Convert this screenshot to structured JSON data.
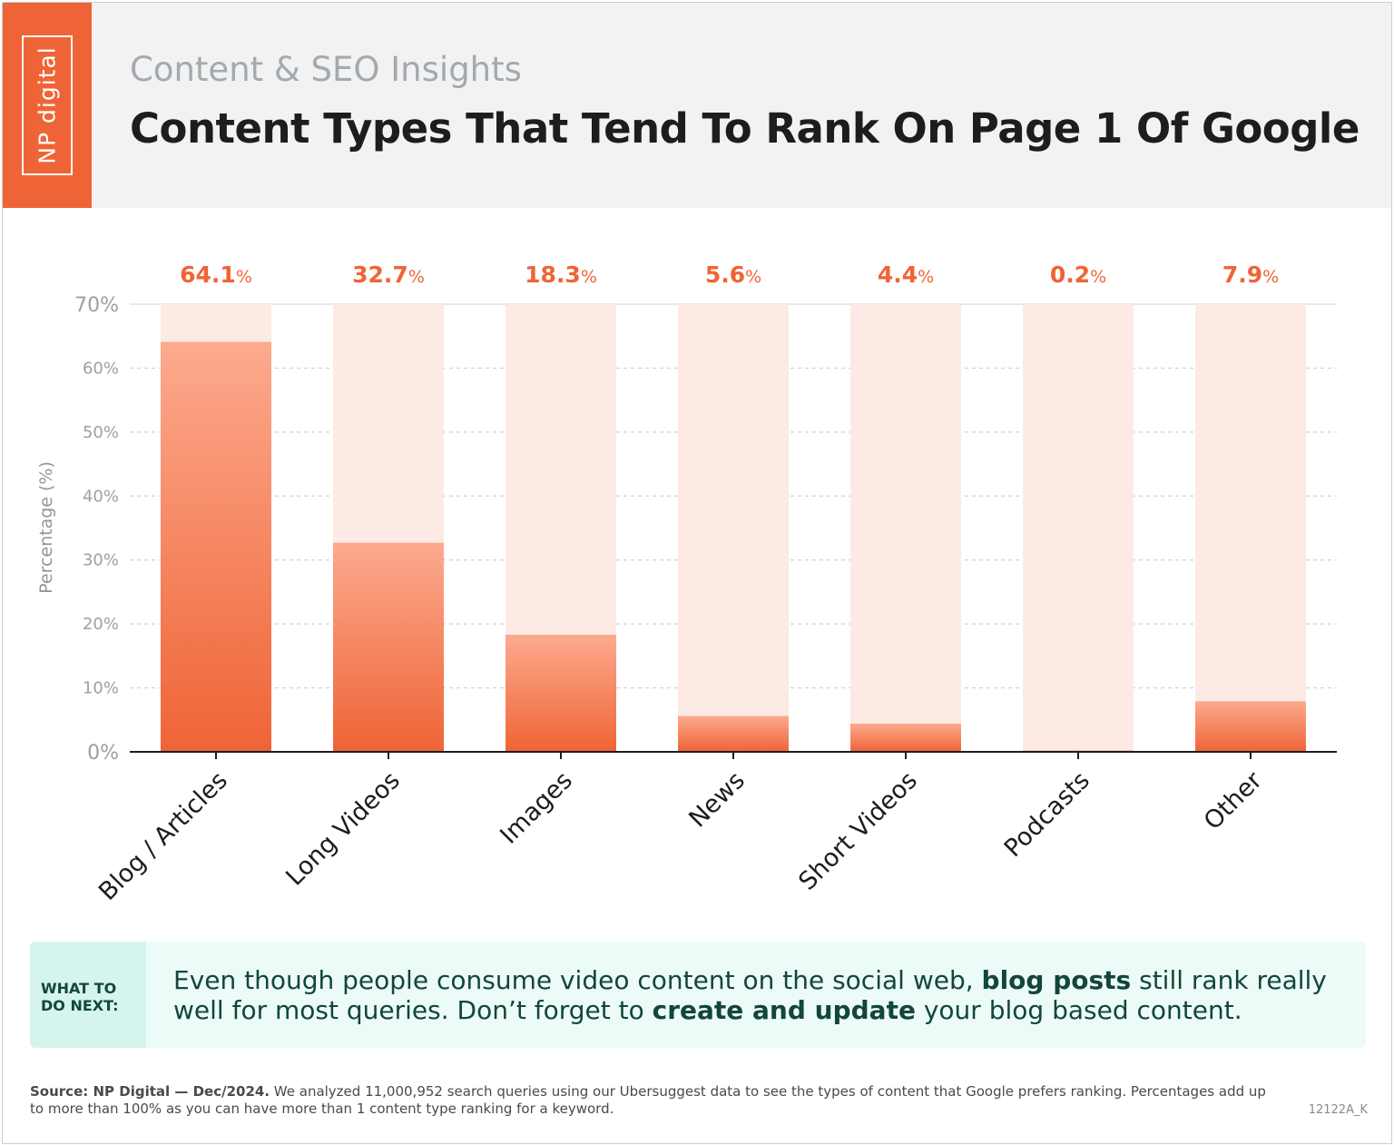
{
  "logo": {
    "text": "NP digital"
  },
  "header": {
    "kicker": "Content & SEO Insights",
    "title": "Content Types That Tend To Rank On Page 1 Of Google"
  },
  "chart_data": {
    "type": "bar",
    "categories": [
      "Blog / Articles",
      "Long Videos",
      "Images",
      "News",
      "Short Videos",
      "Podcasts",
      "Other"
    ],
    "values": [
      64.1,
      32.7,
      18.3,
      5.6,
      4.4,
      0.2,
      7.9
    ],
    "value_labels": [
      "64.1",
      "32.7",
      "18.3",
      "5.6",
      "4.4",
      "0.2",
      "7.9"
    ],
    "value_suffix": "%",
    "ylabel": "Percentage (%)",
    "yticks": [
      "0%",
      "10%",
      "20%",
      "30%",
      "40%",
      "50%",
      "60%",
      "70%"
    ],
    "ylim": [
      0,
      70
    ],
    "grid": true,
    "colors": {
      "bar_top": "#fcaa8e",
      "bar_bottom": "#ef6436",
      "track": "#fdeae5",
      "label": "#ef6436"
    }
  },
  "tip": {
    "label_line1": "WHAT TO",
    "label_line2": "DO NEXT:",
    "text_1": "Even though people consume video content on the social web, ",
    "text_bold_1": "blog posts",
    "text_2": " still rank really well for most queries. Don’t forget to ",
    "text_bold_2": "create and update",
    "text_3": " your blog based content."
  },
  "footer": {
    "source_label": "Source:  NP Digital — Dec/2024.",
    "source_text": " We analyzed 11,000,952 search queries using our Ubersuggest data to see the types of content that Google prefers ranking. Percentages add up to more than 100% as you can have more than 1 content type ranking for a keyword.",
    "code": "12122A_K"
  }
}
